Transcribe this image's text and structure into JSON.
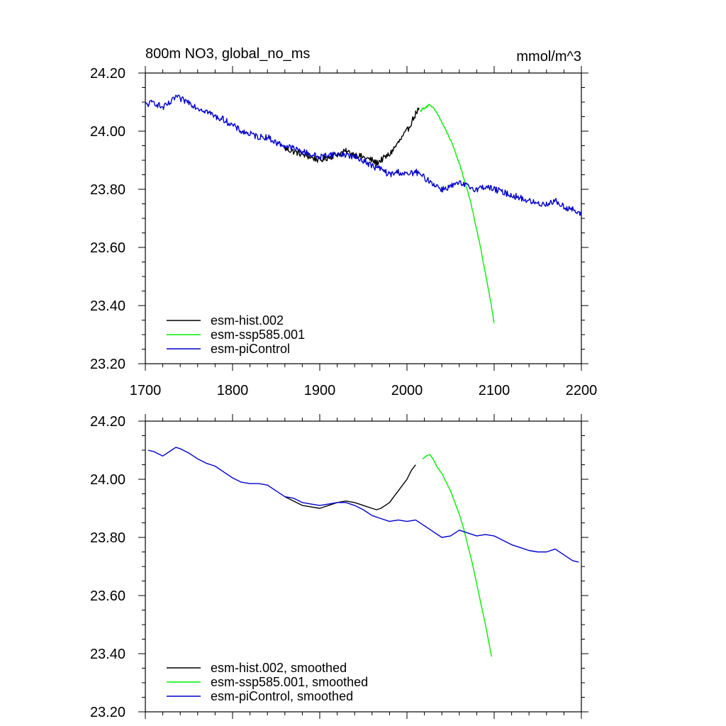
{
  "colors": {
    "esm_hist": "#000000",
    "esm_ssp585": "#00ee00",
    "esm_piControl": "#0000cc"
  },
  "chart_data": [
    {
      "type": "line",
      "title": "800m NO3, global_no_ms",
      "units_label": "mmol/m^3",
      "xlabel": "",
      "ylabel": "",
      "xlim": [
        1700,
        2200
      ],
      "ylim": [
        23.2,
        24.2
      ],
      "x_ticks": [
        1700,
        1800,
        1900,
        2000,
        2100,
        2200
      ],
      "x_tick_labels": [
        "1700",
        "1800",
        "1900",
        "2000",
        "2100",
        "2200"
      ],
      "y_ticks": [
        23.2,
        23.4,
        23.6,
        23.8,
        24.0,
        24.2
      ],
      "y_tick_labels": [
        "23.20",
        "23.40",
        "23.60",
        "23.80",
        "24.00",
        "24.20"
      ],
      "grid": false,
      "legend_position": "bottom-left",
      "noisy": true,
      "series": [
        {
          "name": "esm-hist.002",
          "color_key": "esm_hist",
          "x": [
            1860,
            1870,
            1880,
            1890,
            1900,
            1910,
            1920,
            1930,
            1940,
            1950,
            1960,
            1965,
            1970,
            1975,
            1980,
            1985,
            1990,
            1995,
            2000,
            2005,
            2010,
            2014
          ],
          "y": [
            23.94,
            23.93,
            23.92,
            23.91,
            23.9,
            23.91,
            23.92,
            23.93,
            23.92,
            23.91,
            23.9,
            23.89,
            23.9,
            23.91,
            23.92,
            23.94,
            23.96,
            23.98,
            24.0,
            24.03,
            24.06,
            24.08
          ]
        },
        {
          "name": "esm-ssp585.001",
          "color_key": "esm_ssp585",
          "x": [
            2015,
            2020,
            2025,
            2030,
            2035,
            2040,
            2045,
            2050,
            2055,
            2060,
            2065,
            2070,
            2075,
            2080,
            2085,
            2090,
            2095,
            2100
          ],
          "y": [
            24.07,
            24.08,
            24.09,
            24.08,
            24.06,
            24.03,
            24.0,
            23.97,
            23.93,
            23.89,
            23.84,
            23.79,
            23.73,
            23.66,
            23.59,
            23.51,
            23.43,
            23.34
          ]
        },
        {
          "name": "esm-piControl",
          "color_key": "esm_piControl",
          "x": [
            1700,
            1710,
            1720,
            1730,
            1735,
            1740,
            1750,
            1760,
            1770,
            1780,
            1790,
            1800,
            1810,
            1820,
            1830,
            1840,
            1850,
            1860,
            1870,
            1880,
            1890,
            1900,
            1910,
            1920,
            1930,
            1940,
            1950,
            1960,
            1970,
            1980,
            1990,
            2000,
            2010,
            2020,
            2030,
            2040,
            2050,
            2060,
            2070,
            2080,
            2090,
            2100,
            2110,
            2120,
            2130,
            2140,
            2150,
            2160,
            2170,
            2180,
            2190,
            2200
          ],
          "y": [
            24.09,
            24.1,
            24.08,
            24.1,
            24.12,
            24.11,
            24.1,
            24.08,
            24.07,
            24.05,
            24.04,
            24.02,
            24.0,
            23.99,
            23.98,
            23.98,
            23.96,
            23.95,
            23.94,
            23.93,
            23.92,
            23.91,
            23.92,
            23.92,
            23.92,
            23.91,
            23.9,
            23.88,
            23.87,
            23.85,
            23.86,
            23.85,
            23.86,
            23.84,
            23.82,
            23.8,
            23.81,
            23.82,
            23.81,
            23.8,
            23.81,
            23.8,
            23.79,
            23.78,
            23.77,
            23.76,
            23.75,
            23.75,
            23.76,
            23.74,
            23.73,
            23.71
          ]
        }
      ]
    },
    {
      "type": "line",
      "title": "",
      "xlabel": "",
      "ylabel": "",
      "xlim": [
        1700,
        2200
      ],
      "ylim": [
        23.2,
        24.2
      ],
      "x_ticks": [
        1700,
        1800,
        1900,
        2000,
        2100,
        2200
      ],
      "y_ticks": [
        23.2,
        23.4,
        23.6,
        23.8,
        24.0,
        24.2
      ],
      "y_tick_labels": [
        "23.20",
        "23.40",
        "23.60",
        "23.80",
        "24.00",
        "24.20"
      ],
      "grid": false,
      "legend_position": "bottom-left",
      "noisy": false,
      "series": [
        {
          "name": "esm-hist.002, smoothed",
          "color_key": "esm_hist",
          "x": [
            1860,
            1870,
            1880,
            1890,
            1900,
            1910,
            1920,
            1930,
            1940,
            1950,
            1960,
            1965,
            1970,
            1975,
            1980,
            1985,
            1990,
            1995,
            2000,
            2005,
            2010
          ],
          "y": [
            23.94,
            23.925,
            23.91,
            23.905,
            23.9,
            23.91,
            23.92,
            23.925,
            23.92,
            23.91,
            23.9,
            23.895,
            23.9,
            23.91,
            23.92,
            23.94,
            23.96,
            23.98,
            24.0,
            24.03,
            24.05
          ]
        },
        {
          "name": "esm-ssp585.001, smoothed",
          "color_key": "esm_ssp585",
          "x": [
            2018,
            2022,
            2026,
            2030,
            2035,
            2040,
            2045,
            2050,
            2055,
            2060,
            2065,
            2070,
            2075,
            2080,
            2085,
            2090,
            2097
          ],
          "y": [
            24.07,
            24.08,
            24.085,
            24.07,
            24.04,
            24.02,
            23.99,
            23.96,
            23.92,
            23.88,
            23.83,
            23.77,
            23.71,
            23.64,
            23.57,
            23.5,
            23.39
          ]
        },
        {
          "name": "esm-piControl, smoothed",
          "color_key": "esm_piControl",
          "x": [
            1703,
            1710,
            1720,
            1730,
            1735,
            1740,
            1750,
            1760,
            1770,
            1780,
            1790,
            1800,
            1810,
            1820,
            1830,
            1840,
            1850,
            1860,
            1870,
            1880,
            1890,
            1900,
            1910,
            1920,
            1930,
            1940,
            1950,
            1960,
            1970,
            1980,
            1990,
            2000,
            2010,
            2020,
            2030,
            2040,
            2050,
            2060,
            2070,
            2080,
            2090,
            2100,
            2110,
            2120,
            2130,
            2140,
            2150,
            2160,
            2170,
            2180,
            2190,
            2197
          ],
          "y": [
            24.1,
            24.095,
            24.08,
            24.1,
            24.11,
            24.105,
            24.09,
            24.07,
            24.055,
            24.045,
            24.025,
            24.005,
            23.99,
            23.985,
            23.985,
            23.98,
            23.96,
            23.94,
            23.935,
            23.92,
            23.915,
            23.91,
            23.915,
            23.92,
            23.92,
            23.91,
            23.895,
            23.875,
            23.865,
            23.855,
            23.86,
            23.855,
            23.86,
            23.84,
            23.82,
            23.8,
            23.805,
            23.825,
            23.815,
            23.805,
            23.81,
            23.805,
            23.79,
            23.775,
            23.765,
            23.755,
            23.75,
            23.75,
            23.76,
            23.74,
            23.72,
            23.715
          ]
        }
      ]
    }
  ]
}
